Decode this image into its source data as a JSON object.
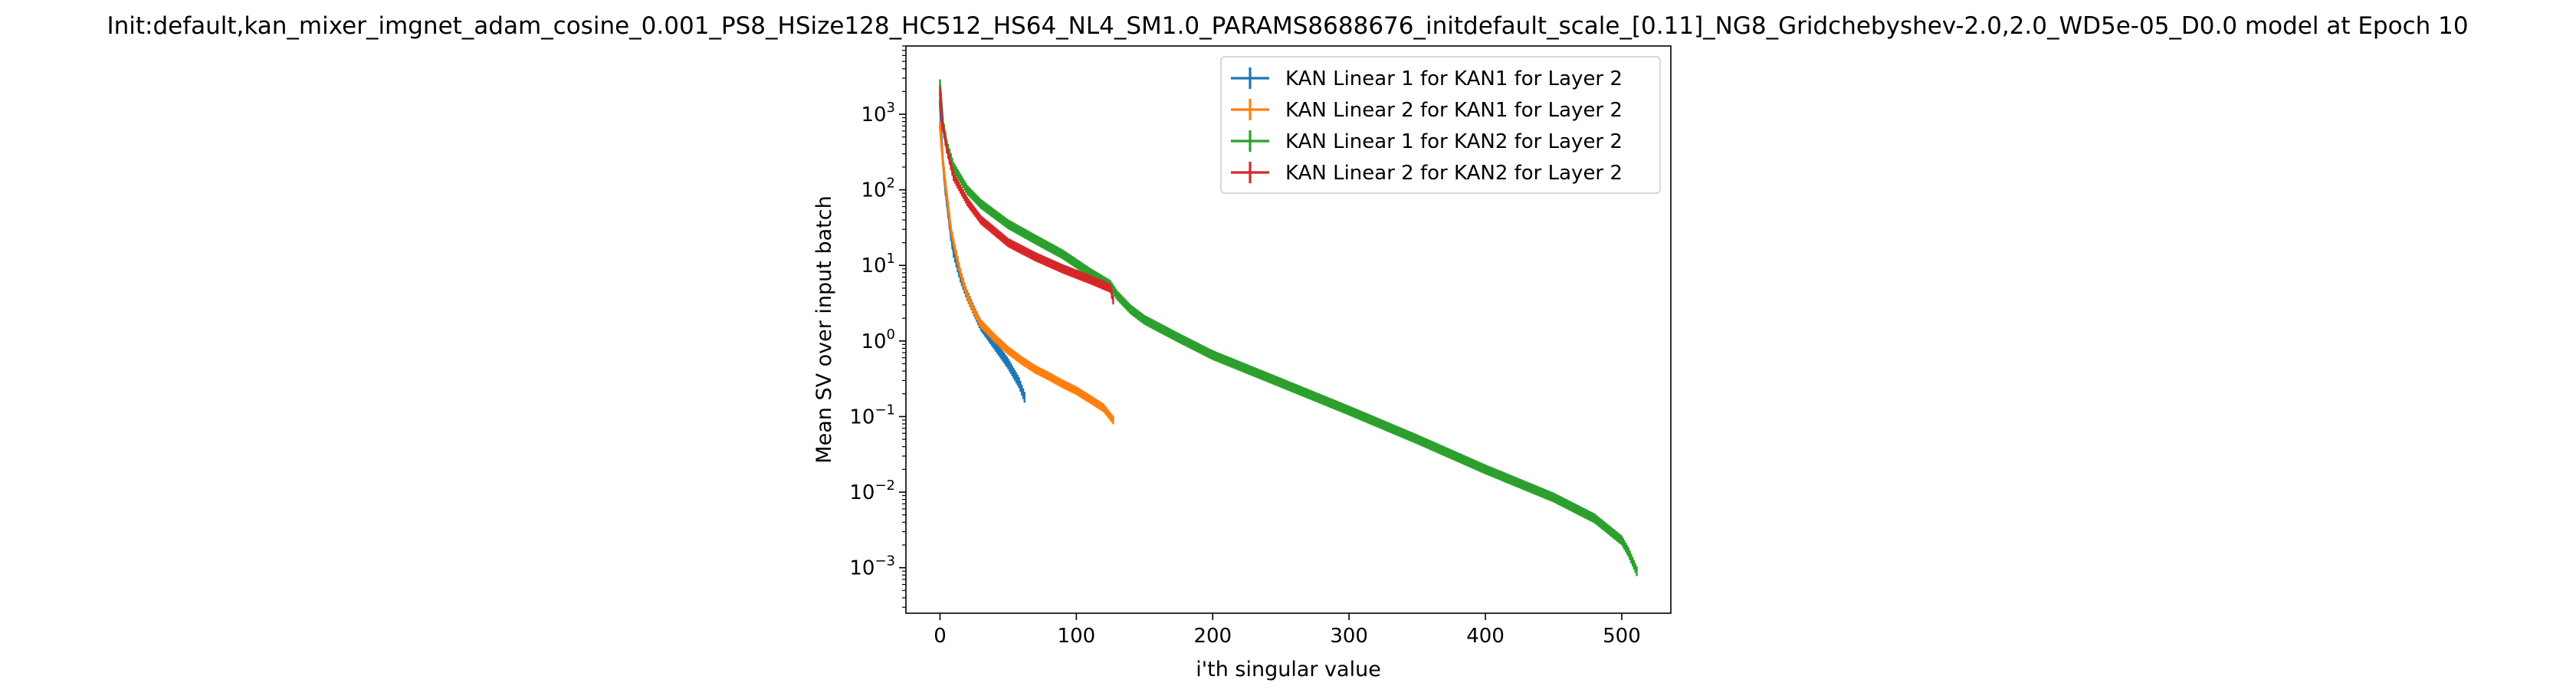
{
  "chart_data": {
    "type": "line",
    "title": "Init:default,kan_mixer_imgnet_adam_cosine_0.001_PS8_HSize128_HC512_HS64_NL4_SM1.0_PARAMS8688676_initdefault_scale_[0.11]_NG8_Gridchebyshev-2.0,2.0_WD5e-05_D0.0 model at Epoch 10",
    "xlabel": "i'th singular value",
    "ylabel": "Mean SV over input batch",
    "xlim": [
      -25,
      536
    ],
    "ylim": [
      0.00025,
      8000
    ],
    "yscale": "log",
    "grid": false,
    "error_bars": true,
    "legend_position": "upper right",
    "x_ticks": [
      {
        "value": 0,
        "label": "0"
      },
      {
        "value": 100,
        "label": "100"
      },
      {
        "value": 200,
        "label": "200"
      },
      {
        "value": 300,
        "label": "300"
      },
      {
        "value": 400,
        "label": "400"
      },
      {
        "value": 500,
        "label": "500"
      }
    ],
    "y_ticks": [
      {
        "value": 0.001,
        "base": "10",
        "exp": "−3"
      },
      {
        "value": 0.01,
        "base": "10",
        "exp": "−2"
      },
      {
        "value": 0.1,
        "base": "10",
        "exp": "−1"
      },
      {
        "value": 1,
        "base": "10",
        "exp": "0"
      },
      {
        "value": 10,
        "base": "10",
        "exp": "1"
      },
      {
        "value": 100,
        "base": "10",
        "exp": "2"
      },
      {
        "value": 1000,
        "base": "10",
        "exp": "3"
      }
    ],
    "series": [
      {
        "name": "KAN Linear 1 for KAN1 for Layer 2",
        "color": "#1f77b4",
        "err_rel": 0.18,
        "points": [
          [
            0,
            1500
          ],
          [
            1,
            500
          ],
          [
            2,
            250
          ],
          [
            4,
            100
          ],
          [
            6,
            50
          ],
          [
            8,
            25
          ],
          [
            10,
            15
          ],
          [
            15,
            7
          ],
          [
            20,
            4
          ],
          [
            25,
            2.5
          ],
          [
            30,
            1.6
          ],
          [
            40,
            0.9
          ],
          [
            50,
            0.5
          ],
          [
            58,
            0.28
          ],
          [
            62,
            0.18
          ]
        ]
      },
      {
        "name": "KAN Linear 2 for KAN1 for Layer 2",
        "color": "#ff7f0e",
        "err_rel": 0.14,
        "points": [
          [
            0,
            700
          ],
          [
            1,
            400
          ],
          [
            2,
            250
          ],
          [
            4,
            120
          ],
          [
            6,
            60
          ],
          [
            8,
            30
          ],
          [
            10,
            20
          ],
          [
            15,
            8
          ],
          [
            20,
            4
          ],
          [
            25,
            2.5
          ],
          [
            30,
            1.7
          ],
          [
            40,
            1.1
          ],
          [
            50,
            0.75
          ],
          [
            60,
            0.55
          ],
          [
            70,
            0.42
          ],
          [
            80,
            0.34
          ],
          [
            90,
            0.27
          ],
          [
            100,
            0.22
          ],
          [
            110,
            0.17
          ],
          [
            120,
            0.13
          ],
          [
            127,
            0.09
          ]
        ]
      },
      {
        "name": "KAN Linear 1 for KAN2 for Layer 2",
        "color": "#2ca02c",
        "err_rel": 0.16,
        "points": [
          [
            0,
            2500
          ],
          [
            2,
            800
          ],
          [
            5,
            400
          ],
          [
            10,
            200
          ],
          [
            20,
            100
          ],
          [
            30,
            65
          ],
          [
            50,
            35
          ],
          [
            70,
            22
          ],
          [
            90,
            14
          ],
          [
            110,
            8
          ],
          [
            125,
            5.5
          ],
          [
            130,
            4
          ],
          [
            140,
            2.6
          ],
          [
            150,
            1.9
          ],
          [
            175,
            1.1
          ],
          [
            200,
            0.65
          ],
          [
            250,
            0.28
          ],
          [
            300,
            0.12
          ],
          [
            350,
            0.05
          ],
          [
            400,
            0.02
          ],
          [
            450,
            0.0085
          ],
          [
            480,
            0.0045
          ],
          [
            500,
            0.0023
          ],
          [
            505,
            0.0016
          ],
          [
            511,
            0.0009
          ]
        ]
      },
      {
        "name": "KAN Linear 2 for KAN2 for Layer 2",
        "color": "#d62728",
        "err_rel": 0.15,
        "points": [
          [
            0,
            2000
          ],
          [
            2,
            700
          ],
          [
            5,
            350
          ],
          [
            10,
            150
          ],
          [
            20,
            70
          ],
          [
            30,
            40
          ],
          [
            50,
            20
          ],
          [
            70,
            13
          ],
          [
            90,
            9
          ],
          [
            110,
            6.5
          ],
          [
            125,
            5
          ],
          [
            127,
            3.5
          ]
        ]
      }
    ]
  }
}
